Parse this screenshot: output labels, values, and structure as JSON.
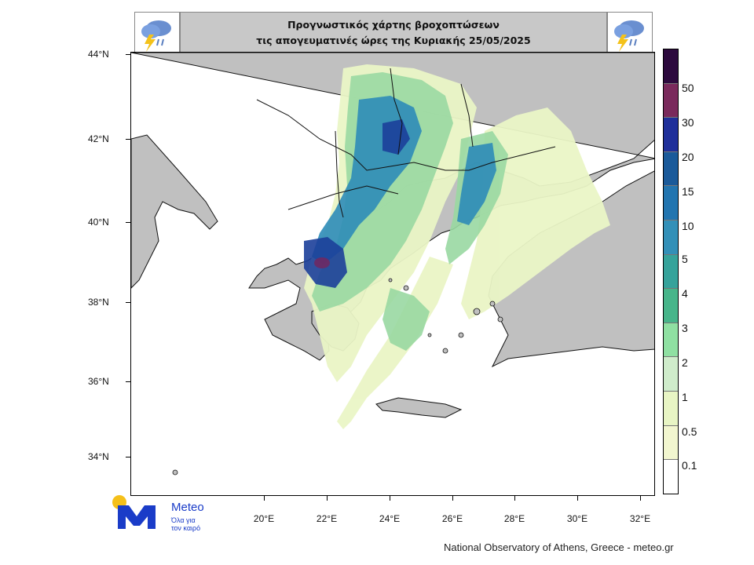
{
  "title": {
    "line1": "Προγνωστικός χάρτης βροχοπτώσεων",
    "line2": "τις απογευματινές ώρες  της Κυριακής 25/05/2025"
  },
  "icons": {
    "left": "storm-cloud-icon",
    "right": "storm-cloud-icon"
  },
  "axes": {
    "lat_labels": [
      "44°N",
      "42°N",
      "40°N",
      "38°N",
      "36°N",
      "34°N"
    ],
    "lon_labels": [
      "20°E",
      "22°E",
      "24°E",
      "26°E",
      "28°E",
      "30°E",
      "32°E"
    ]
  },
  "colorbar": {
    "labels": [
      "50",
      "30",
      "20",
      "15",
      "10",
      "5",
      "4",
      "3",
      "2",
      "1",
      "0.5",
      "0.1"
    ],
    "colors": [
      "#2d0a3e",
      "#7a2a5c",
      "#1f2f9a",
      "#1a5a9a",
      "#2275b0",
      "#3390b8",
      "#36a39b",
      "#47b58a",
      "#8fe0a2",
      "#cfeccb",
      "#e8f5c4",
      "#f2f6cf",
      "#ffffff"
    ]
  },
  "colors": {
    "land": "#c0c0c0",
    "sea": "#ffffff",
    "light": "#eaf5c6",
    "green": "#9ad9a2",
    "blue": "#2e8cb8",
    "dark": "#1c3f9a",
    "purple": "#6a2b66"
  },
  "logo": {
    "name": "Meteo",
    "tagline_1": "Όλα για",
    "tagline_2": "τον καιρό"
  },
  "credit": "National Observatory of Athens, Greece - meteo.gr"
}
